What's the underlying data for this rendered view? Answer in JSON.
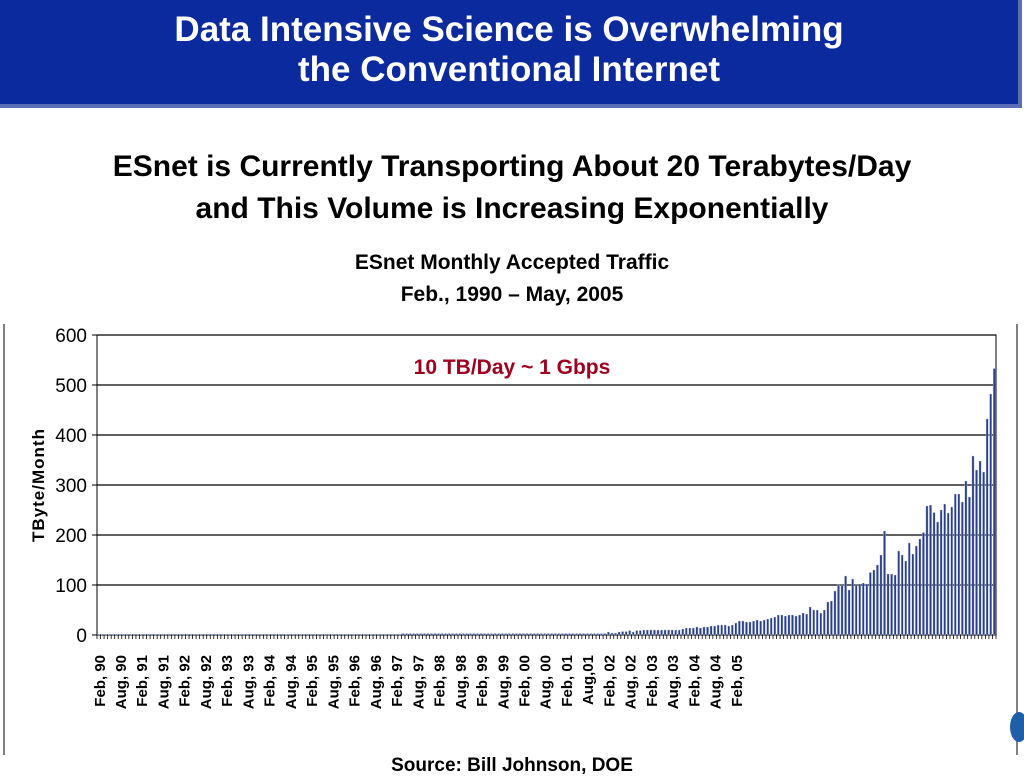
{
  "banner": {
    "line1": "Data Intensive Science is Overwhelming",
    "line2": "the Conventional Internet",
    "color": "#0b2a9e"
  },
  "headline": {
    "line1": "ESnet is Currently Transporting About 20 Terabytes/Day",
    "line2": "and This Volume is Increasing Exponentially"
  },
  "chart_title": {
    "line1": "ESnet Monthly Accepted Traffic",
    "line2": "Feb., 1990 – May, 2005"
  },
  "source": "Source: Bill Johnson, DOE",
  "chart_data": {
    "type": "bar",
    "ylabel": "TByte/Month",
    "ylim": [
      0,
      600
    ],
    "yticks": [
      0,
      100,
      200,
      300,
      400,
      500,
      600
    ],
    "grid": true,
    "annotation": "10 TB/Day ~ 1 Gbps",
    "annotation_color": "#a00020",
    "bar_color": "#2a3f86",
    "bar_highlight": "#c8d2ee",
    "x_tick_labels": [
      "Feb, 90",
      "Aug, 90",
      "Feb, 91",
      "Aug, 91",
      "Feb, 92",
      "Aug, 92",
      "Feb, 93",
      "Aug, 93",
      "Feb, 94",
      "Aug, 94",
      "Feb, 95",
      "Aug, 95",
      "Feb, 96",
      "Aug, 96",
      "Feb, 97",
      "Aug, 97",
      "Feb, 98",
      "Aug, 98",
      "Feb, 99",
      "Aug, 99",
      "Feb, 00",
      "Aug, 00",
      "Feb, 01",
      "Aug,01",
      "Feb, 02",
      "Aug, 02",
      "Feb, 03",
      "Aug, 03",
      "Feb, 04",
      "Aug, 04",
      "Feb, 05"
    ],
    "series": [
      {
        "values": [
          0,
          0,
          0,
          0,
          0,
          0,
          0,
          0,
          0,
          0,
          0,
          0,
          0,
          0,
          0,
          0,
          0,
          0,
          0,
          0,
          0,
          0,
          0,
          0,
          0,
          0,
          0,
          0,
          0,
          0,
          0,
          0,
          0,
          0,
          0,
          0,
          0,
          0,
          0,
          0,
          0,
          0,
          0,
          0,
          0,
          0,
          0,
          0,
          0,
          0,
          0,
          0,
          0,
          0,
          0,
          0,
          0,
          0,
          0,
          0,
          0,
          0,
          0,
          0,
          0,
          0,
          0,
          0,
          0,
          0,
          0,
          0,
          0,
          0,
          0,
          0,
          0,
          0,
          0,
          0,
          0,
          0,
          0,
          0,
          0,
          0,
          3,
          3,
          3,
          3,
          3,
          3,
          3,
          3,
          3,
          3,
          3,
          3,
          3,
          3,
          3,
          3,
          3,
          3,
          3,
          3,
          3,
          3,
          3,
          3,
          3,
          3,
          3,
          3,
          3,
          3,
          3,
          3,
          3,
          3,
          3,
          3,
          3,
          3,
          3,
          3,
          3,
          3,
          3,
          3,
          3,
          3,
          3,
          3,
          3,
          3,
          3,
          3,
          3,
          3,
          3,
          3,
          3,
          3,
          6,
          4,
          4,
          6,
          7,
          7,
          9,
          6,
          9,
          9,
          10,
          10,
          10,
          10,
          10,
          10,
          10,
          10,
          10,
          10,
          10,
          12,
          14,
          14,
          14,
          16,
          14,
          16,
          16,
          18,
          18,
          20,
          20,
          20,
          18,
          20,
          24,
          28,
          28,
          26,
          26,
          28,
          30,
          28,
          30,
          32,
          34,
          36,
          40,
          40,
          38,
          40,
          40,
          38,
          40,
          44,
          42,
          56,
          50,
          50,
          44,
          50,
          66,
          68,
          88,
          100,
          100,
          118,
          90,
          112,
          100,
          102,
          104,
          102,
          125,
          130,
          140,
          160,
          208,
          122,
          122,
          120,
          168,
          160,
          148,
          184,
          162,
          178,
          192,
          205,
          258,
          260,
          245,
          226,
          250,
          262,
          244,
          256,
          282,
          282,
          266,
          308,
          276,
          358,
          330,
          348,
          326,
          432,
          482,
          533
        ]
      }
    ]
  }
}
